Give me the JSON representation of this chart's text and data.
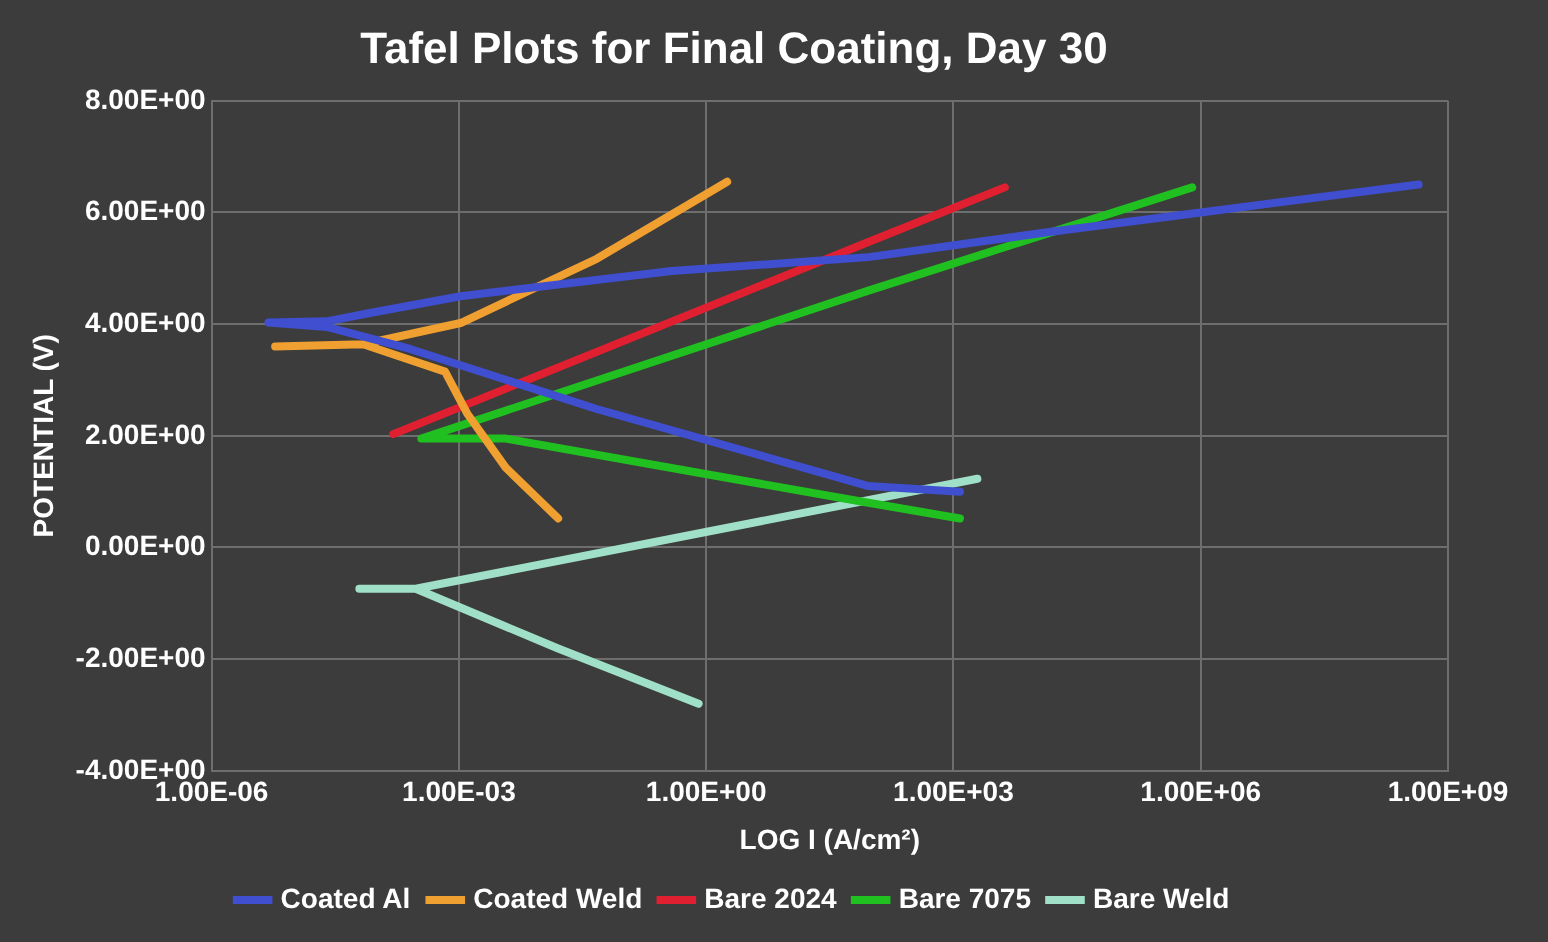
{
  "chart_data": {
    "type": "line",
    "title": "Tafel Plots for Final Coating, Day 30",
    "xlabel": "LOG I (A/cm²)",
    "ylabel": "POTENTIAL (V)",
    "log": "x",
    "grid": true,
    "legend": "bottom",
    "marker": "none",
    "line_style": "solid",
    "xlim": [
      1e-06,
      1000000000.0
    ],
    "xticks": [
      {
        "value": 1e-06,
        "label": "1.00E-06"
      },
      {
        "value": 0.001,
        "label": "1.00E-03"
      },
      {
        "value": 1,
        "label": "1.00E+00"
      },
      {
        "value": 1000.0,
        "label": "1.00E+03"
      },
      {
        "value": 1000000.0,
        "label": "1.00E+06"
      },
      {
        "value": 1000000000.0,
        "label": "1.00E+09"
      }
    ],
    "ylim": [
      -4,
      8
    ],
    "yticks": [
      {
        "value": -4,
        "label": "-4.00E+00"
      },
      {
        "value": -2,
        "label": "-2.00E+00"
      },
      {
        "value": 0,
        "label": "0.00E+00"
      },
      {
        "value": 2,
        "label": "2.00E+00"
      },
      {
        "value": 4,
        "label": "4.00E+00"
      },
      {
        "value": 6,
        "label": "6.00E+00"
      },
      {
        "value": 8,
        "label": "8.00E+00"
      }
    ],
    "series": [
      {
        "name": "Coated Al",
        "color": "#3f4fd0",
        "x": [
          1200,
          93,
          0.047,
          0.00025,
          2.5e-05,
          4.9e-06,
          2.5e-05,
          8.3e-05,
          0.00105,
          0.38,
          93,
          14500,
          1000000,
          440000000
        ],
        "values": [
          1.0,
          1.1,
          2.48,
          3.56,
          3.95,
          4.03,
          4.05,
          4.2,
          4.5,
          4.95,
          5.2,
          5.65,
          6.0,
          6.5
        ]
      },
      {
        "name": "Coated Weld",
        "color": "#f0a030",
        "x": [
          0.016,
          0.0037,
          0.00126,
          0.00068,
          6.9e-05,
          5.9e-06,
          6.9e-05,
          0.00105,
          0.047,
          1.8
        ],
        "values": [
          0.52,
          1.43,
          2.4,
          3.15,
          3.64,
          3.6,
          3.64,
          4.02,
          5.17,
          6.55
        ]
      },
      {
        "name": "Bare 2024",
        "color": "#e02030",
        "x": [
          0.00016,
          93,
          4200
        ],
        "values": [
          2.03,
          5.47,
          6.45
        ]
      },
      {
        "name": "Bare 7075",
        "color": "#20c020",
        "x": [
          1200,
          93,
          0.0037,
          0.00035,
          93,
          790000
        ],
        "values": [
          0.52,
          0.8,
          1.95,
          1.95,
          4.6,
          6.45
        ]
      },
      {
        "name": "Bare Weld",
        "color": "#a0e0c8",
        "x": [
          0.81,
          0.016,
          0.0003,
          6.2e-05,
          0.0003,
          1.1,
          1950
        ],
        "values": [
          -2.8,
          -1.81,
          -0.74,
          -0.74,
          -0.74,
          0.29,
          1.23
        ]
      }
    ]
  }
}
